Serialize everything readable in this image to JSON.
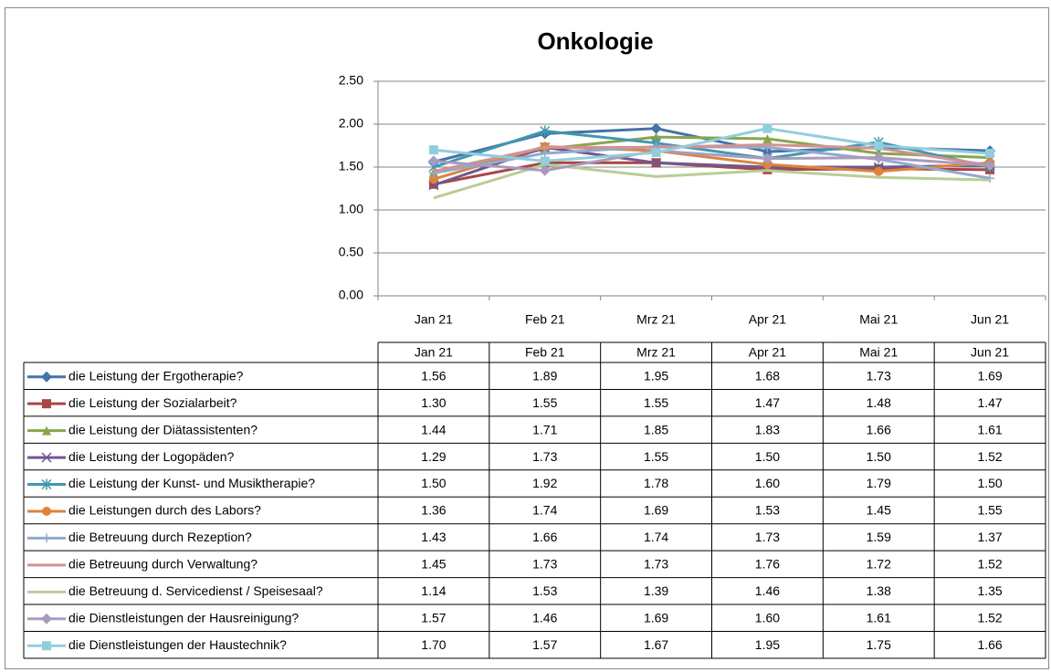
{
  "chart_data": {
    "type": "line",
    "title": "Onkologie",
    "categories": [
      "Jan 21",
      "Feb 21",
      "Mrz 21",
      "Apr 21",
      "Mai 21",
      "Jun 21"
    ],
    "ylim": [
      0,
      2.5
    ],
    "yticks": [
      {
        "value": 0,
        "label": "0.00"
      },
      {
        "value": 0.5,
        "label": "0.50"
      },
      {
        "value": 1,
        "label": "1.00"
      },
      {
        "value": 1.5,
        "label": "1.50"
      },
      {
        "value": 2,
        "label": "2.00"
      },
      {
        "value": 2.5,
        "label": "2.50"
      }
    ],
    "grid": true,
    "series": [
      {
        "name": "die Leistung der Ergotherapie?",
        "color": "#4572A7",
        "marker": "diamond",
        "values": [
          1.56,
          1.89,
          1.95,
          1.68,
          1.73,
          1.69
        ],
        "value_labels": [
          "1.56",
          "1.89",
          "1.95",
          "1.68",
          "1.73",
          "1.69"
        ]
      },
      {
        "name": "die Leistung der Sozialarbeit?",
        "color": "#AA4643",
        "marker": "square",
        "values": [
          1.3,
          1.55,
          1.55,
          1.47,
          1.48,
          1.47
        ],
        "value_labels": [
          "1.30",
          "1.55",
          "1.55",
          "1.47",
          "1.48",
          "1.47"
        ]
      },
      {
        "name": "die Leistung der Diätassistenten?",
        "color": "#89A54E",
        "marker": "triangle",
        "values": [
          1.44,
          1.71,
          1.85,
          1.83,
          1.66,
          1.61
        ],
        "value_labels": [
          "1.44",
          "1.71",
          "1.85",
          "1.83",
          "1.66",
          "1.61"
        ]
      },
      {
        "name": "die Leistung der Logopäden?",
        "color": "#71588F",
        "marker": "x",
        "values": [
          1.29,
          1.73,
          1.55,
          1.5,
          1.5,
          1.52
        ],
        "value_labels": [
          "1.29",
          "1.73",
          "1.55",
          "1.50",
          "1.50",
          "1.52"
        ]
      },
      {
        "name": "die Leistung der Kunst- und Musiktherapie?",
        "color": "#4198AF",
        "marker": "asterisk",
        "values": [
          1.5,
          1.92,
          1.78,
          1.6,
          1.79,
          1.5
        ],
        "value_labels": [
          "1.50",
          "1.92",
          "1.78",
          "1.60",
          "1.79",
          "1.50"
        ]
      },
      {
        "name": "die Leistungen durch  des Labors?",
        "color": "#DB843D",
        "marker": "circle",
        "values": [
          1.36,
          1.74,
          1.69,
          1.53,
          1.45,
          1.55
        ],
        "value_labels": [
          "1.36",
          "1.74",
          "1.69",
          "1.53",
          "1.45",
          "1.55"
        ]
      },
      {
        "name": "die Betreuung durch Rezeption?",
        "color": "#93A9CF",
        "marker": "plus",
        "values": [
          1.43,
          1.66,
          1.74,
          1.73,
          1.59,
          1.37
        ],
        "value_labels": [
          "1.43",
          "1.66",
          "1.74",
          "1.73",
          "1.59",
          "1.37"
        ]
      },
      {
        "name": "die Betreuung durch Verwaltung?",
        "color": "#D19392",
        "marker": "none",
        "values": [
          1.45,
          1.73,
          1.73,
          1.76,
          1.72,
          1.52
        ],
        "value_labels": [
          "1.45",
          "1.73",
          "1.73",
          "1.76",
          "1.72",
          "1.52"
        ]
      },
      {
        "name": "die Betreuung d. Servicedienst / Speisesaal?",
        "color": "#B9CD96",
        "marker": "none",
        "values": [
          1.14,
          1.53,
          1.39,
          1.46,
          1.38,
          1.35
        ],
        "value_labels": [
          "1.14",
          "1.53",
          "1.39",
          "1.46",
          "1.38",
          "1.35"
        ]
      },
      {
        "name": "die Dienstleistungen der Hausreinigung?",
        "color": "#A99BBD",
        "marker": "diamond",
        "values": [
          1.57,
          1.46,
          1.69,
          1.6,
          1.61,
          1.52
        ],
        "value_labels": [
          "1.57",
          "1.46",
          "1.69",
          "1.60",
          "1.61",
          "1.52"
        ]
      },
      {
        "name": "die Dienstleistungen der Haustechnik?",
        "color": "#92CDDC",
        "marker": "square",
        "values": [
          1.7,
          1.57,
          1.67,
          1.95,
          1.75,
          1.66
        ],
        "value_labels": [
          "1.70",
          "1.57",
          "1.67",
          "1.95",
          "1.75",
          "1.66"
        ]
      }
    ]
  }
}
